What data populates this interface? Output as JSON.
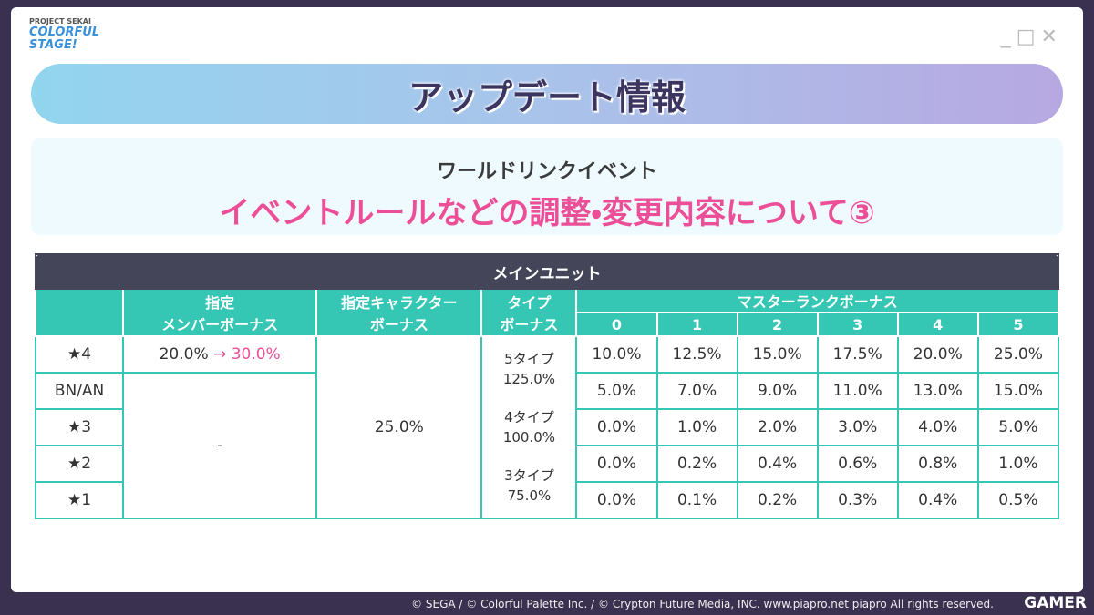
{
  "logo": {
    "brand": "PROJECT SEKAI",
    "name": "COLORFUL STAGE!"
  },
  "header": {
    "title": "アップデート情報"
  },
  "notice": {
    "subtitle": "ワールドリンクイベント",
    "title": "イベントルールなどの調整・変更内容について③"
  },
  "table": {
    "caption": "メインユニット",
    "headers": {
      "member_bonus": [
        "指定",
        "メンバーボーナス"
      ],
      "character_bonus": [
        "指定キャラクター",
        "ボーナス"
      ],
      "type_bonus": [
        "タイプ",
        "ボーナス"
      ],
      "master_rank": "マスターランクボーナス",
      "ranks": [
        "0",
        "1",
        "2",
        "3",
        "4",
        "5"
      ]
    },
    "rarities": [
      "★4",
      "BN/AN",
      "★3",
      "★2",
      "★1"
    ],
    "member_bonus": {
      "star4_before": "20.0%",
      "arrow": "→",
      "star4_after": "30.0%",
      "others": "-"
    },
    "character_bonus": "25.0%",
    "type_bonus": [
      "5タイプ",
      "125.0%",
      "4タイプ",
      "100.0%",
      "3タイプ",
      "75.0%"
    ],
    "master_rank_rows": [
      [
        "10.0%",
        "12.5%",
        "15.0%",
        "17.5%",
        "20.0%",
        "25.0%"
      ],
      [
        "5.0%",
        "7.0%",
        "9.0%",
        "11.0%",
        "13.0%",
        "15.0%"
      ],
      [
        "0.0%",
        "1.0%",
        "2.0%",
        "3.0%",
        "4.0%",
        "5.0%"
      ],
      [
        "0.0%",
        "0.2%",
        "0.4%",
        "0.6%",
        "0.8%",
        "1.0%"
      ],
      [
        "0.0%",
        "0.1%",
        "0.2%",
        "0.3%",
        "0.4%",
        "0.5%"
      ]
    ]
  },
  "footer": {
    "copyright": "© SEGA / © Colorful Palette Inc. / © Crypton Future Media, INC. www.piapro.net piapro All rights reserved.",
    "watermark": "GAMER"
  }
}
